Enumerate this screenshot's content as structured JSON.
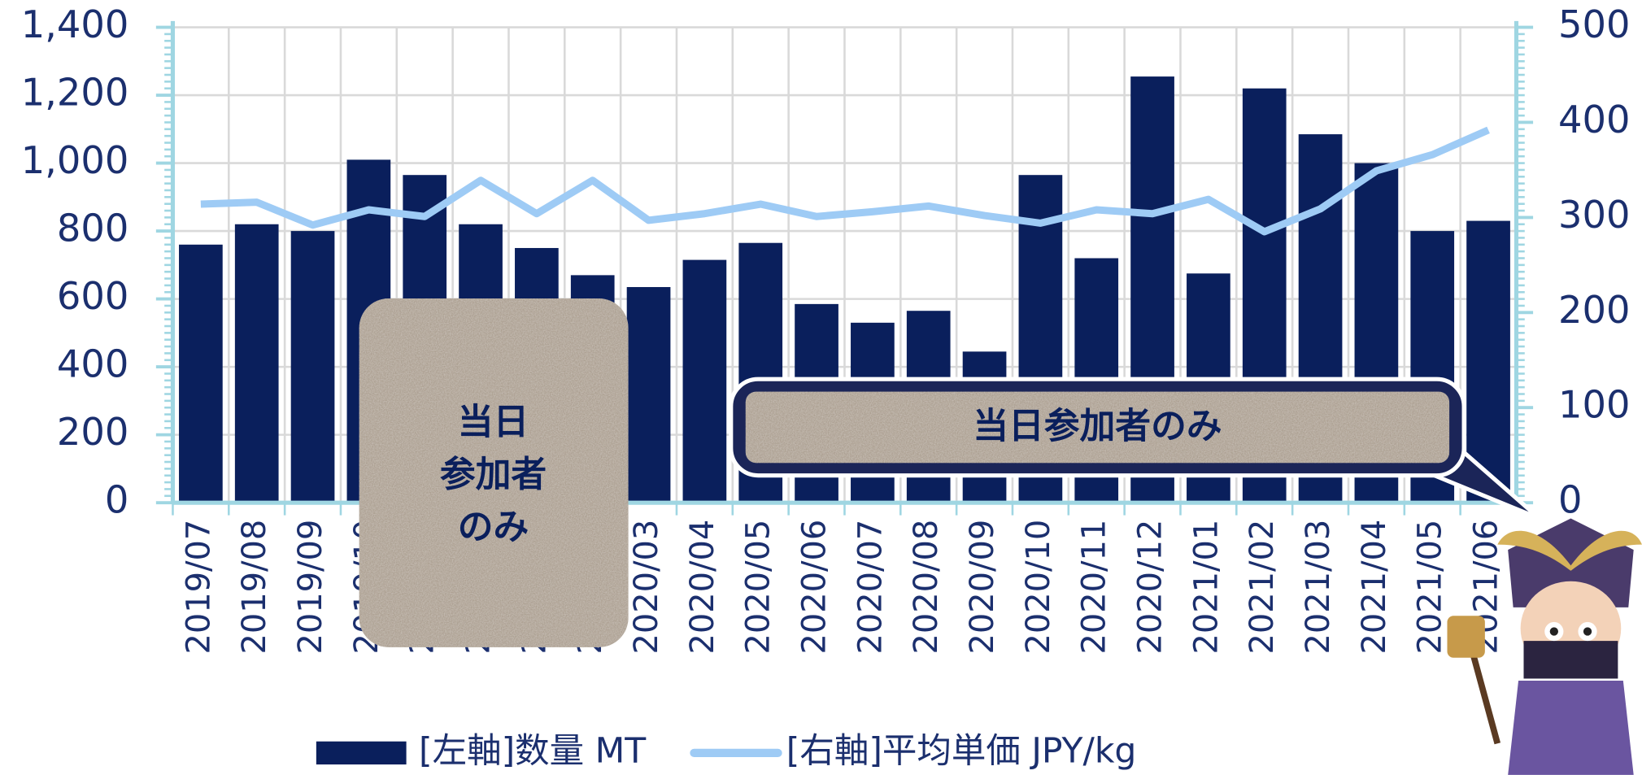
{
  "chart_data": {
    "type": "bar-line",
    "categories": [
      "2019/07",
      "2019/08",
      "2019/09",
      "2019/10",
      "2019/11",
      "2019/12",
      "2020/01",
      "2020/02",
      "2020/03",
      "2020/04",
      "2020/05",
      "2020/06",
      "2020/07",
      "2020/08",
      "2020/09",
      "2020/10",
      "2020/11",
      "2020/12",
      "2021/01",
      "2021/02",
      "2021/03",
      "2021/04",
      "2021/05",
      "2021/06"
    ],
    "series": [
      {
        "name": "[左軸]数量 MT",
        "type": "bar",
        "axis": "y",
        "color": "#0a1f5c",
        "values": [
          760,
          820,
          800,
          1010,
          965,
          820,
          750,
          670,
          635,
          715,
          765,
          585,
          530,
          565,
          445,
          965,
          720,
          1255,
          675,
          1220,
          1085,
          1000,
          800,
          830
        ]
      },
      {
        "name": "[右軸]平均単価 JPY/kg",
        "type": "line",
        "axis": "y2",
        "color": "#9ecbf5",
        "values": [
          314,
          316,
          292,
          308,
          301,
          339,
          304,
          339,
          297,
          304,
          314,
          301,
          306,
          312,
          302,
          294,
          308,
          304,
          319,
          285,
          309,
          349,
          366,
          392
        ]
      }
    ],
    "ylim": [
      0,
      1400
    ],
    "yticks": [
      0,
      200,
      400,
      600,
      800,
      {
        "value": 1000,
        "label": "1,000"
      },
      {
        "value": 1200,
        "label": "1,200"
      },
      {
        "value": 1400,
        "label": "1,400"
      }
    ],
    "y2lim": [
      0,
      500
    ],
    "y2ticks": [
      0,
      100,
      200,
      300,
      400,
      500
    ],
    "grid": true,
    "legend": "bottom",
    "annotations": [
      {
        "lines": [
          "当日",
          "参加者",
          "のみ"
        ]
      },
      {
        "text": "当日参加者のみ"
      }
    ]
  }
}
